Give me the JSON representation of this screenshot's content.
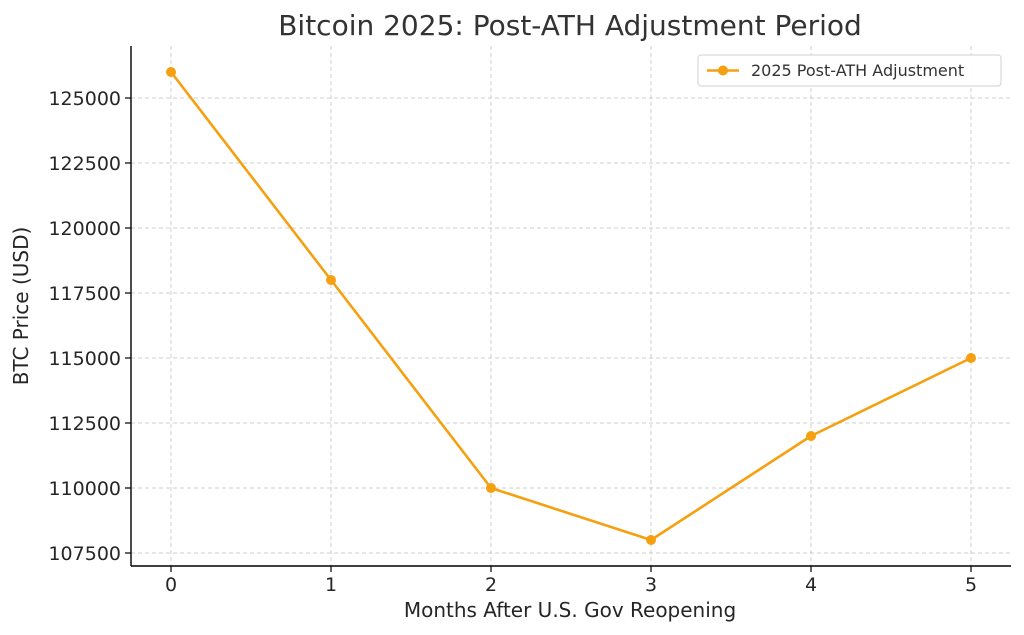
{
  "chart_data": {
    "type": "line",
    "title": "Bitcoin 2025: Post-ATH Adjustment Period",
    "xlabel": "Months After U.S. Gov Reopening",
    "ylabel": "BTC Price (USD)",
    "x": [
      0,
      1,
      2,
      3,
      4,
      5
    ],
    "series": [
      {
        "name": "2025 Post-ATH Adjustment",
        "values": [
          126000,
          118000,
          110000,
          108000,
          112000,
          115000
        ],
        "color": "#f5a010"
      }
    ],
    "xlim": [
      -0.25,
      5.25
    ],
    "ylim": [
      107000,
      127000
    ],
    "xticks": [
      0,
      1,
      2,
      3,
      4,
      5
    ],
    "xtick_labels": [
      "0",
      "1",
      "2",
      "3",
      "4",
      "5"
    ],
    "yticks": [
      107500,
      110000,
      112500,
      115000,
      117500,
      120000,
      122500,
      125000
    ],
    "ytick_labels": [
      "107500",
      "110000",
      "112500",
      "115000",
      "117500",
      "120000",
      "122500",
      "125000"
    ],
    "grid": true,
    "legend": "top-right"
  }
}
